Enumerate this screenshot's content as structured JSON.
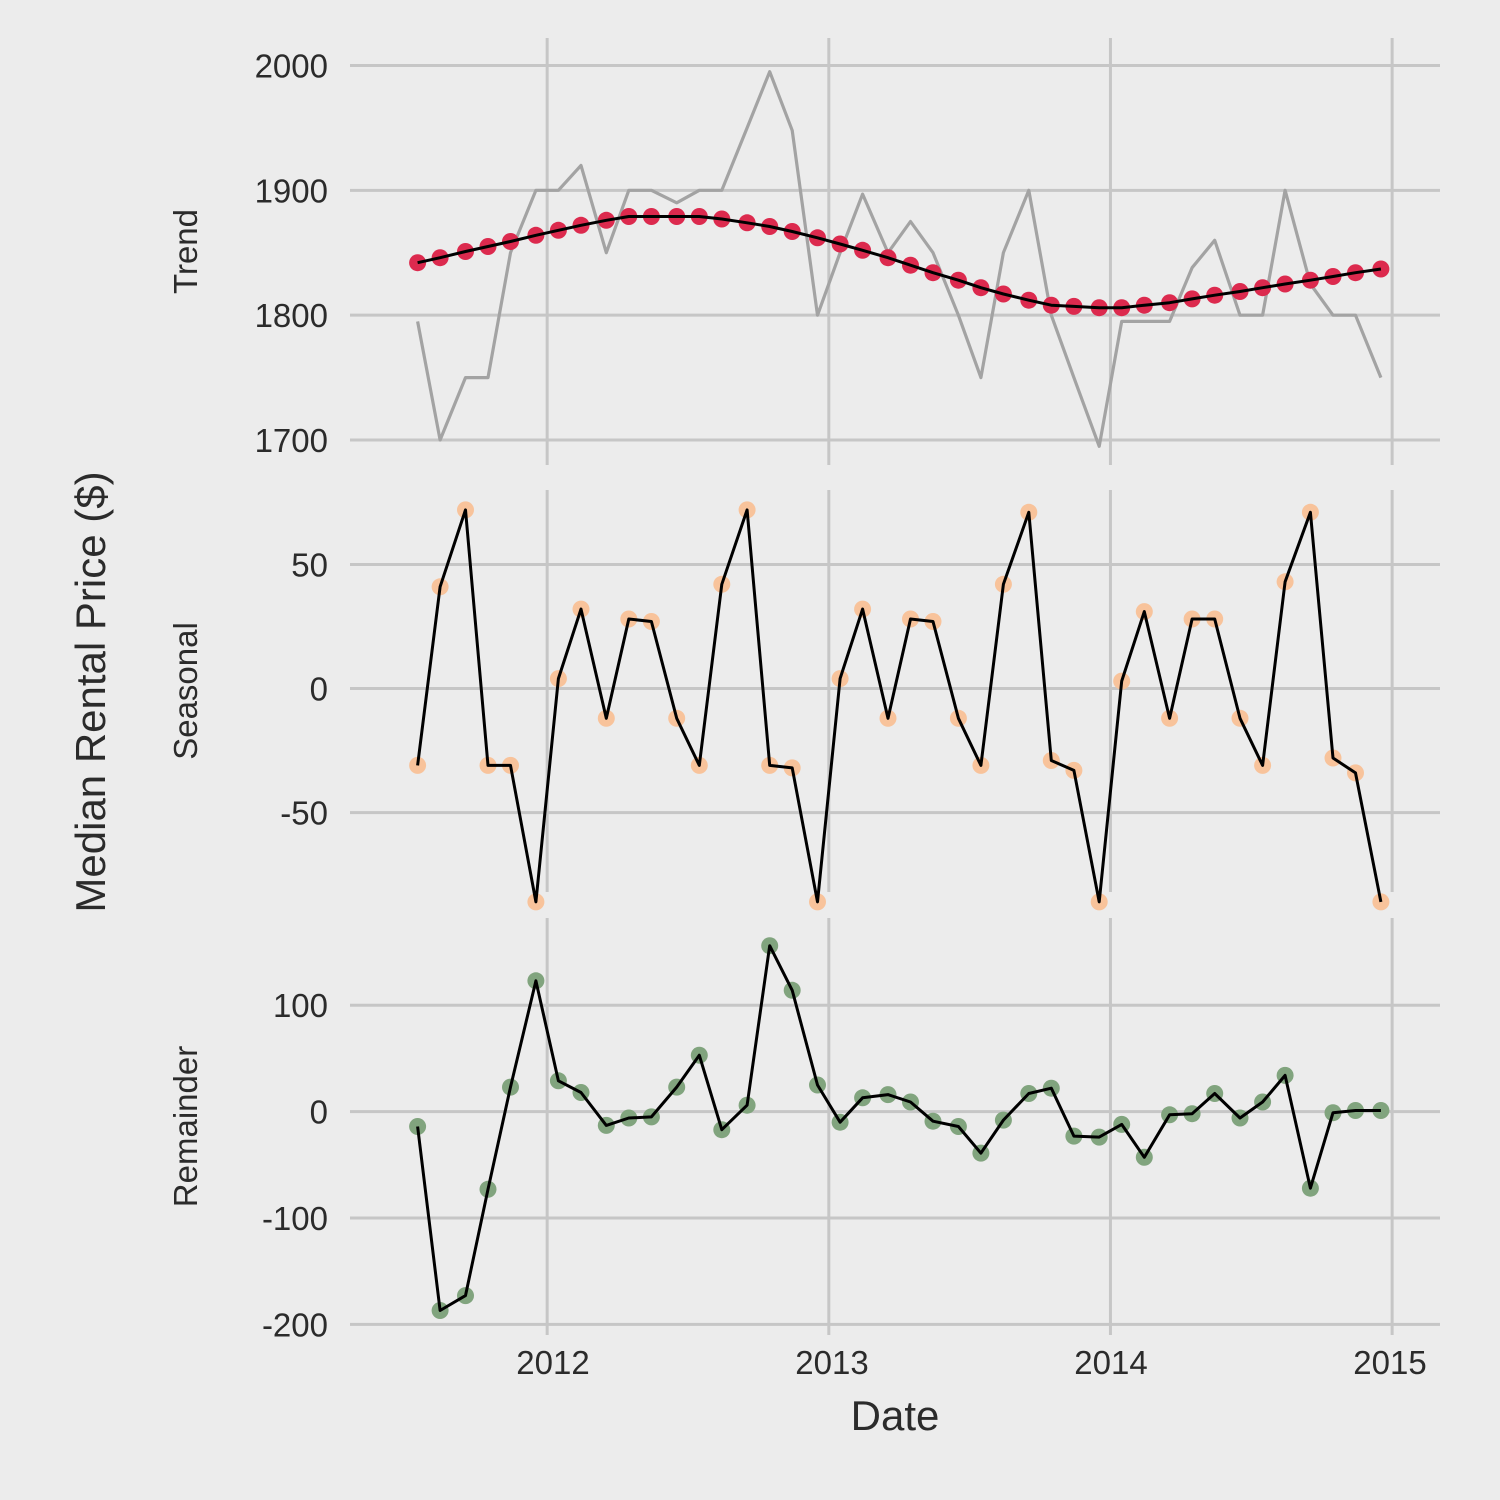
{
  "chart_data": {
    "type": "line",
    "ylabel": "Median Rental Price ($)",
    "xlabel": "Date",
    "x_ticks": [
      "2012",
      "2013",
      "2014",
      "2015"
    ],
    "x_tick_values": [
      2012,
      2013,
      2014,
      2015
    ],
    "xlim": [
      2011.3,
      2015.17
    ],
    "x": [
      2011.54,
      2011.62,
      2011.71,
      2011.79,
      2011.87,
      2011.96,
      2012.04,
      2012.12,
      2012.21,
      2012.29,
      2012.37,
      2012.46,
      2012.54,
      2012.62,
      2012.71,
      2012.79,
      2012.87,
      2012.96,
      2013.04,
      2013.12,
      2013.21,
      2013.29,
      2013.37,
      2013.46,
      2013.54,
      2013.62,
      2013.71,
      2013.79,
      2013.87,
      2013.96,
      2014.04,
      2014.12,
      2014.21,
      2014.29,
      2014.37,
      2014.46,
      2014.54,
      2014.62,
      2014.71,
      2014.79,
      2014.87,
      2014.96
    ],
    "panels": [
      {
        "label": "Trend",
        "ylim": [
          1680,
          2022
        ],
        "yticks": [
          1700,
          1800,
          1900,
          2000
        ],
        "ytick_labels": [
          "1700",
          "1800",
          "1900",
          "2000"
        ],
        "series": [
          {
            "style": "observed",
            "color": "#a3a3a3",
            "values": [
              1795,
              1700,
              1750,
              1750,
              1850,
              1900,
              1900,
              1920,
              1850,
              1900,
              1900,
              1890,
              1900,
              1900,
              1950,
              1995,
              1948,
              1800,
              1850,
              1897,
              1850,
              1875,
              1850,
              1800,
              1750,
              1850,
              1900,
              1800,
              1750,
              1695,
              1795,
              1795,
              1795,
              1838,
              1860,
              1800,
              1800,
              1900,
              1825,
              1800,
              1800,
              1750
            ]
          },
          {
            "style": "trend",
            "color": "#dc2a4e",
            "values": [
              1842,
              1846,
              1851,
              1855,
              1859,
              1864,
              1868,
              1872,
              1876,
              1879,
              1879,
              1879,
              1879,
              1877,
              1874,
              1871,
              1867,
              1862,
              1857,
              1852,
              1846,
              1840,
              1834,
              1828,
              1822,
              1817,
              1812,
              1808,
              1807,
              1806,
              1806,
              1808,
              1810,
              1813,
              1816,
              1819,
              1822,
              1825,
              1828,
              1831,
              1834,
              1837
            ]
          }
        ]
      },
      {
        "label": "Seasonal",
        "ylim": [
          -82,
          80
        ],
        "yticks": [
          -50,
          0,
          50
        ],
        "ytick_labels": [
          "-50",
          "0",
          "50"
        ],
        "series": [
          {
            "style": "component",
            "color": "#f8c39b",
            "values": [
              -31,
              41,
              72,
              -31,
              -31,
              -86,
              4,
              32,
              -12,
              28,
              27,
              -12,
              -31,
              42,
              72,
              -31,
              -32,
              -86,
              4,
              32,
              -12,
              28,
              27,
              -12,
              -31,
              42,
              71,
              -29,
              -33,
              -86,
              3,
              31,
              -12,
              28,
              28,
              -12,
              -31,
              43,
              71,
              -28,
              -34,
              -86
            ]
          }
        ]
      },
      {
        "label": "Remainder",
        "ylim": [
          -210,
          182
        ],
        "yticks": [
          -200,
          -100,
          0,
          100
        ],
        "ytick_labels": [
          "-200",
          "-100",
          "0",
          "100"
        ],
        "series": [
          {
            "style": "component",
            "color": "#81a47e",
            "values": [
              -14,
              -187,
              -173,
              -73,
              23,
              123,
              29,
              18,
              -13,
              -6,
              -5,
              23,
              53,
              -17,
              6,
              156,
              114,
              25,
              -10,
              13,
              16,
              9,
              -9,
              -14,
              -39,
              -8,
              17,
              22,
              -23,
              -24,
              -12,
              -43,
              -3,
              -2,
              17,
              -6,
              9,
              34,
              -72,
              -1,
              1,
              1
            ]
          }
        ]
      }
    ]
  }
}
